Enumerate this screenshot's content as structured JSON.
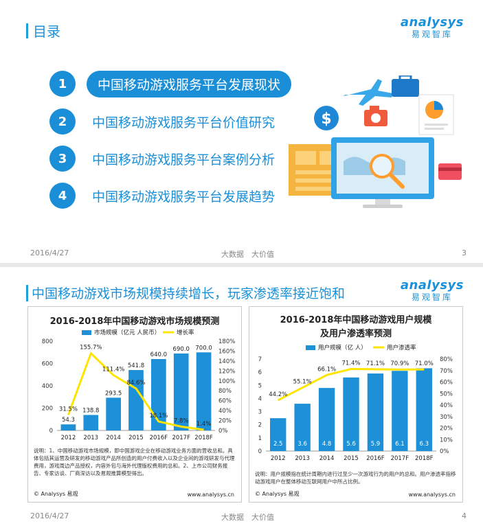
{
  "slide1": {
    "title": "目录",
    "logo": {
      "word": "analysys",
      "cn": "易观智库"
    },
    "items": [
      {
        "num": "1",
        "label": "中国移动游戏服务平台发展现状"
      },
      {
        "num": "2",
        "label": "中国移动游戏服务平台价值研究"
      },
      {
        "num": "3",
        "label": "中国移动游戏服务平台案例分析"
      },
      {
        "num": "4",
        "label": "中国移动游戏服务平台发展趋势"
      }
    ],
    "footer": {
      "date": "2016/4/27",
      "slogan": "大数据　大价值",
      "page": "3"
    }
  },
  "slide2": {
    "title": "中国移动游戏市场规模持续增长，玩家渗透率接近饱和",
    "logo": {
      "word": "analysys",
      "cn": "易观智库"
    },
    "left": {
      "note": "说明：1、中国移动游戏市场规模，即中国游戏企业在移动游戏业务方面的营收总和。具体包括其运营及研发的移动游戏产品所创造的用户付费收入以及企业间的游戏研发与代理费用，游戏周边产品授权，内容外包与海外代理版权费用的总和。2、上市公司财务报告、专家访谈、厂商深访以及易观推算模型得出。",
      "source": "© Analysys 易观",
      "url": "www.analysys.cn"
    },
    "right": {
      "note": "说明：用户规模指在统计周期内进行过至少一次游戏行为的用户的总和。用户渗透率指移动游戏用户在整体移动互联网用户中所占比例。",
      "source": "© Analysys 易观",
      "url": "www.analysys.cn"
    },
    "footer": {
      "date": "2016/4/27",
      "slogan": "大数据　大价值",
      "page": "4"
    }
  },
  "colors": {
    "accent": "#1a8fd8",
    "bar": "#1e90d8",
    "line": "#ffe400"
  },
  "chart_data": [
    {
      "type": "bar",
      "title": "2016-2018年中国移动游戏市场规模预测",
      "categories": [
        "2012",
        "2013",
        "2014",
        "2015",
        "2016F",
        "2017F",
        "2018F"
      ],
      "series": [
        {
          "name": "市场规模（亿元 人民币）",
          "type": "bar",
          "axis": "left",
          "values": [
            54.3,
            138.8,
            293.5,
            541.8,
            640.0,
            690.0,
            700.0
          ],
          "labels": [
            "54.3",
            "138.8",
            "293.5",
            "541.8",
            "640.0",
            "690.0",
            "700.0"
          ]
        },
        {
          "name": "增长率",
          "type": "line",
          "axis": "right",
          "values": [
            31.5,
            155.7,
            111.4,
            84.6,
            18.1,
            7.8,
            1.4
          ],
          "labels": [
            "31.5%",
            "155.7%",
            "111.4%",
            "84.6%",
            "18.1%",
            "7.8%",
            "1.4%"
          ]
        }
      ],
      "ylim": [
        0,
        800
      ],
      "yticks": [
        "0",
        "200",
        "400",
        "600",
        "800"
      ],
      "y2lim": [
        0,
        180
      ],
      "y2ticks": [
        "0%",
        "20%",
        "40%",
        "60%",
        "80%",
        "100%",
        "120%",
        "140%",
        "160%",
        "180%"
      ],
      "legend": "top"
    },
    {
      "type": "bar",
      "title": "2016-2018年中国移动游戏用户规模及用户渗透率预测",
      "categories": [
        "2012",
        "2013",
        "2014",
        "2015",
        "2016F",
        "2017F",
        "2018F"
      ],
      "series": [
        {
          "name": "用户规模（亿 人）",
          "type": "bar",
          "axis": "left",
          "values": [
            2.5,
            3.6,
            4.8,
            5.6,
            5.9,
            6.1,
            6.3
          ],
          "labels": [
            "2.5",
            "3.6",
            "4.8",
            "5.6",
            "5.9",
            "6.1",
            "6.3"
          ]
        },
        {
          "name": "用户渗透率",
          "type": "line",
          "axis": "right",
          "values": [
            44.2,
            55.1,
            66.1,
            71.4,
            71.1,
            70.9,
            71.0
          ],
          "labels": [
            "44.2%",
            "55.1%",
            "66.1%",
            "71.4%",
            "71.1%",
            "70.9%",
            "71.0%"
          ]
        }
      ],
      "ylim": [
        0,
        7
      ],
      "yticks": [
        "0",
        "1",
        "2",
        "3",
        "4",
        "5",
        "6",
        "7"
      ],
      "y2lim": [
        0,
        80
      ],
      "y2ticks": [
        "0%",
        "10%",
        "20%",
        "30%",
        "40%",
        "50%",
        "60%",
        "70%",
        "80%"
      ],
      "legend": "top"
    }
  ]
}
